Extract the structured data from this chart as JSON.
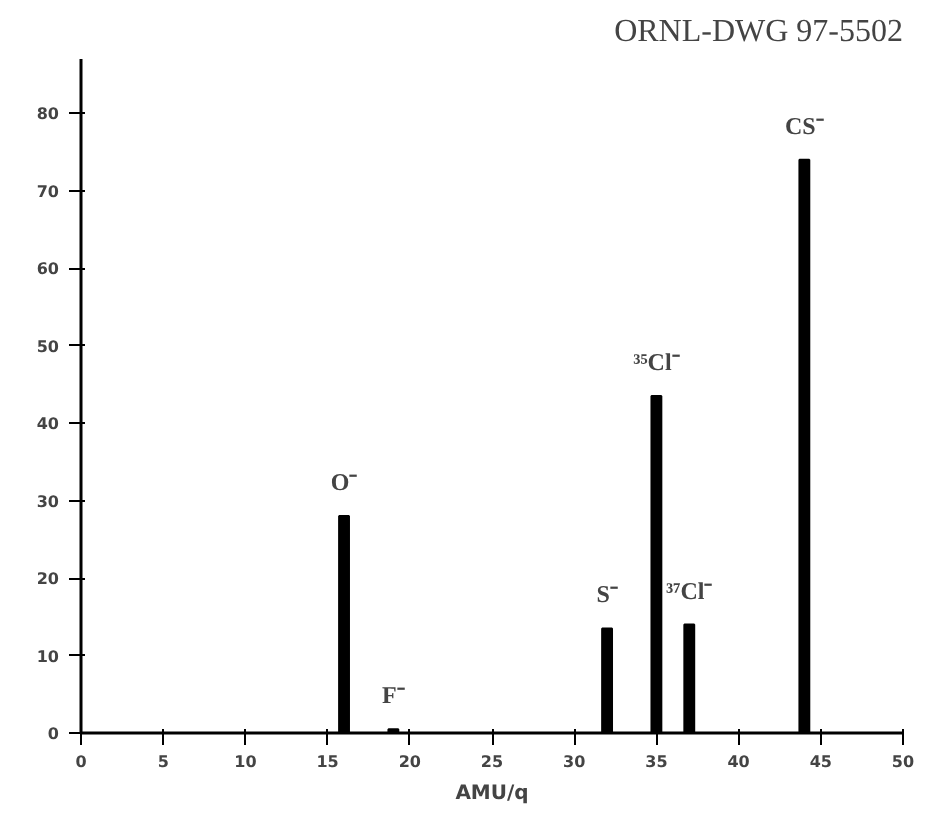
{
  "chart_data": {
    "type": "bar",
    "xlabel": "AMU/q",
    "x": [
      16,
      19,
      32,
      35,
      37,
      44
    ],
    "values": [
      28,
      0.5,
      13.5,
      43.5,
      14,
      74
    ],
    "color": "#000000",
    "xlim": [
      0,
      50
    ],
    "xticks": [
      0,
      5,
      10,
      15,
      20,
      25,
      30,
      35,
      40,
      45,
      50
    ],
    "ylim": [
      0,
      87
    ],
    "yticks": [
      0,
      10,
      20,
      30,
      40,
      50,
      60,
      70,
      80
    ],
    "grid": false,
    "annotations": [
      "ORNL-DWG 97-5502",
      {
        "text": "O⁻",
        "x": 16,
        "y": 28
      },
      {
        "text": "F⁻",
        "x": 19,
        "y": 0.5
      },
      {
        "text": "S⁻",
        "x": 32,
        "y": 13.5
      },
      {
        "text": "³⁵Cl⁻",
        "x": 35,
        "y": 43.5
      },
      {
        "text": "³⁷Cl⁻",
        "x": 37,
        "y": 14
      },
      {
        "text": "CS⁻",
        "x": 44,
        "y": 74
      }
    ]
  }
}
